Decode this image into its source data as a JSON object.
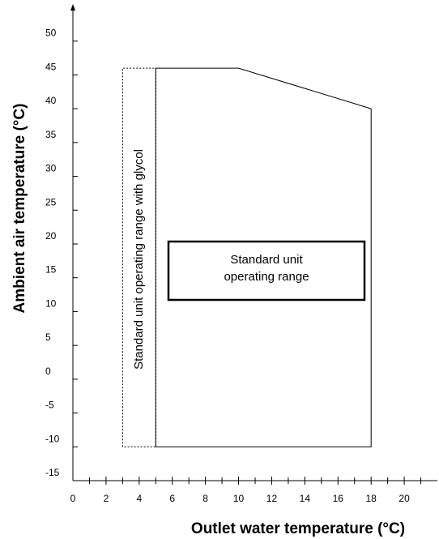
{
  "chart_data": {
    "type": "area",
    "xlabel": "Outlet water temperature (°C)",
    "ylabel": "Ambient air temperature (°C)",
    "xlim": [
      0,
      22
    ],
    "ylim": [
      -15,
      55
    ],
    "x_ticks": [
      0,
      2,
      4,
      6,
      8,
      10,
      12,
      14,
      16,
      18,
      20
    ],
    "y_ticks": [
      -15,
      -10,
      -5,
      0,
      5,
      10,
      15,
      20,
      25,
      30,
      35,
      40,
      45,
      50
    ],
    "x_tick_labels": [
      "0",
      "2",
      "4",
      "6",
      "8",
      "10",
      "12",
      "14",
      "16",
      "18",
      "20"
    ],
    "y_tick_labels": [
      "-15",
      "-10",
      "-5",
      "0",
      "5",
      "10",
      "15",
      "20",
      "25",
      "30",
      "35",
      "40",
      "45",
      "50"
    ],
    "grid": false,
    "regions": [
      {
        "label": "Standard unit operating range",
        "label_lines": [
          "Standard unit",
          "operating range"
        ],
        "border": "solid",
        "points": [
          [
            5,
            -10
          ],
          [
            5,
            46
          ],
          [
            10,
            46
          ],
          [
            18,
            40
          ],
          [
            18,
            -10
          ]
        ]
      },
      {
        "label": "Standard unit operating range with glycol",
        "border": "dotted",
        "points": [
          [
            3,
            -10
          ],
          [
            3,
            46
          ],
          [
            5,
            46
          ],
          [
            5,
            -10
          ]
        ]
      }
    ]
  }
}
